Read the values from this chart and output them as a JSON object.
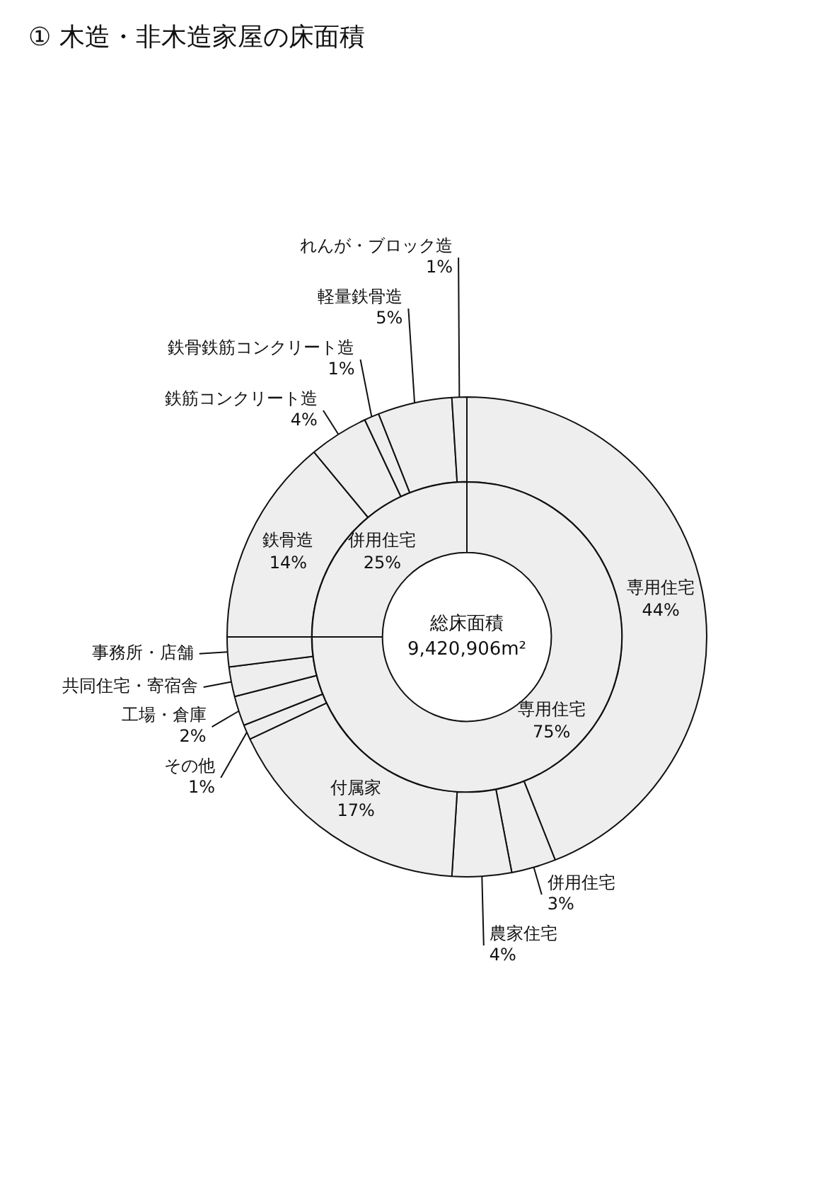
{
  "chart_data": [
    {
      "type": "donut",
      "title": "① 木造・非木造家屋の床面積",
      "legend": false,
      "categories": [
        "専用住宅",
        "併用住宅",
        "農家住宅",
        "付属家",
        "その他",
        "工場・倉庫",
        "共同住宅・寄宿舎",
        "事務所・店舗",
        "鉄骨造",
        "鉄筋コンクリート造",
        "鉄骨鉄筋コンクリート造",
        "軽量鉄骨造",
        "れんが・ブロック造"
      ],
      "values": [
        44,
        3,
        4,
        17,
        1,
        2,
        2,
        2,
        14,
        4,
        1,
        5,
        1
      ],
      "color": "#eeeeee",
      "value_labels": [
        "44%",
        "3%",
        "4%",
        "17%",
        "1%",
        "2%",
        null,
        null,
        "14%",
        "4%",
        "1%",
        "5%",
        "1%"
      ]
    },
    {
      "type": "donut",
      "legend": false,
      "annotations": [
        "総床面積",
        "9,420,906m²"
      ],
      "categories": [
        "専用住宅",
        "併用住宅"
      ],
      "values": [
        75,
        25
      ],
      "color": "#eeeeee",
      "value_labels": [
        "75%",
        "25%"
      ]
    }
  ]
}
